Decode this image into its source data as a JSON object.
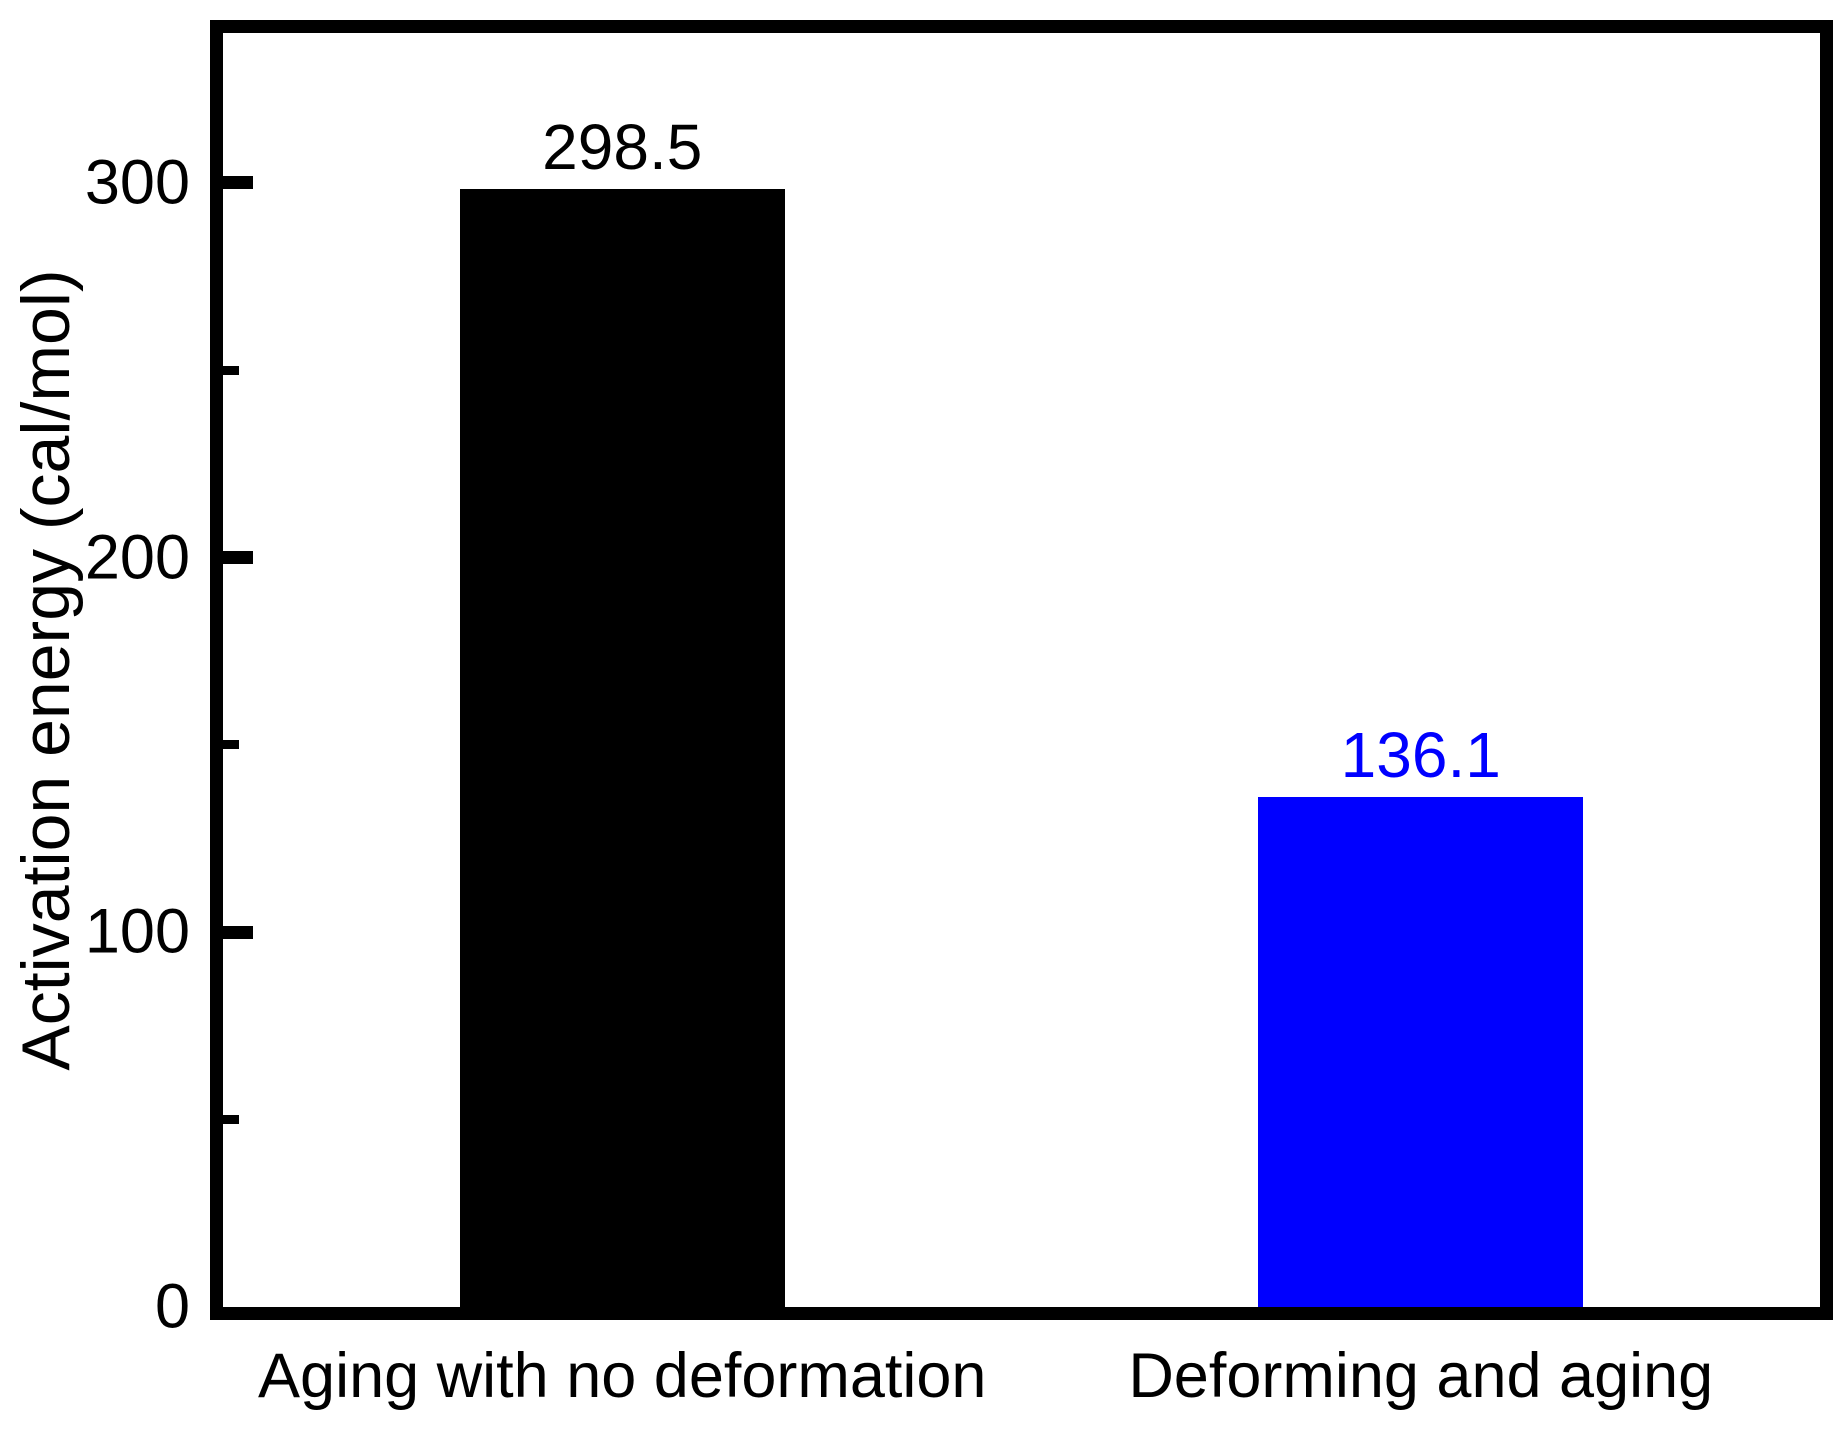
{
  "chart_data": {
    "type": "bar",
    "title": "",
    "xlabel": "",
    "ylabel": "Activation energy (cal/mol)",
    "categories": [
      "Aging with no deformation",
      "Deforming and aging"
    ],
    "series": [
      {
        "name": "Activation energy",
        "values": [
          298.5,
          136.1
        ],
        "bar_colors": [
          "#000000",
          "#0000ff"
        ]
      }
    ],
    "value_labels": [
      "298.5",
      "136.1"
    ],
    "value_label_colors": [
      "#000000",
      "#0000ff"
    ],
    "ylim": [
      0,
      340
    ],
    "yticks_major": [
      0,
      100,
      200,
      300
    ],
    "ytick_labels": [
      "0",
      "100",
      "200",
      "300"
    ],
    "yticks_minor": [
      50,
      150,
      250
    ],
    "grid": false,
    "legend_position": "none",
    "frame_color": "#000000",
    "background_color": "#ffffff"
  }
}
